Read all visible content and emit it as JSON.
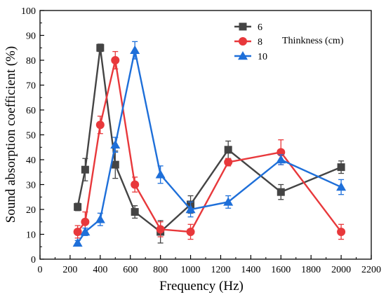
{
  "chart_data": {
    "type": "line",
    "xlabel": "Frequency (Hz)",
    "ylabel": "Sound absorption coefficient (%)",
    "xlim": [
      0,
      2200
    ],
    "ylim": [
      0,
      100
    ],
    "xticks": [
      0,
      200,
      400,
      600,
      800,
      1000,
      1200,
      1400,
      1600,
      1800,
      2000,
      2200
    ],
    "yticks": [
      0,
      10,
      20,
      30,
      40,
      50,
      60,
      70,
      80,
      90,
      100
    ],
    "grid": false,
    "legend_placement": "top-right",
    "legend_title": "Thinkness (cm)",
    "series": [
      {
        "name": "6",
        "color": "#444444",
        "marker": "square",
        "x": [
          250,
          300,
          400,
          500,
          630,
          800,
          1000,
          1250,
          1600,
          2000
        ],
        "values": [
          21,
          36,
          85,
          38,
          19,
          11,
          22,
          44,
          27,
          37
        ],
        "errors": [
          1.5,
          4.5,
          1.5,
          5.5,
          2.5,
          4.5,
          3.5,
          3.5,
          3,
          2.5
        ]
      },
      {
        "name": "8",
        "color": "#e8383b",
        "marker": "circle",
        "x": [
          250,
          300,
          400,
          500,
          630,
          800,
          1000,
          1250,
          1600,
          2000
        ],
        "values": [
          11,
          15,
          54,
          80,
          30,
          12,
          11,
          39,
          43,
          11
        ],
        "errors": [
          2.5,
          4,
          3.5,
          3.5,
          3,
          3,
          3,
          1.5,
          5,
          3
        ]
      },
      {
        "name": "10",
        "color": "#1e6fd9",
        "marker": "triangle",
        "x": [
          250,
          300,
          400,
          500,
          630,
          800,
          1000,
          1250,
          1600,
          2000
        ],
        "values": [
          6.5,
          11,
          16,
          46,
          84,
          34,
          20,
          23,
          40,
          29
        ],
        "errors": [
          1,
          1.5,
          2.5,
          3,
          3.5,
          3.5,
          3,
          2.5,
          2,
          3
        ]
      }
    ]
  }
}
